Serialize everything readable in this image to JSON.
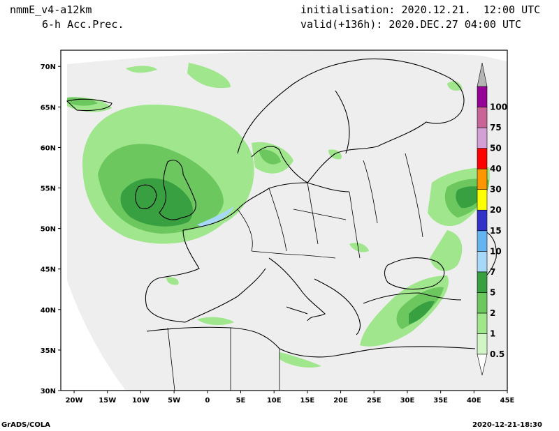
{
  "header": {
    "model": "nmmE_v4-a12km",
    "variable": "6-h Acc.Prec.",
    "init": "initialisation: 2020.12.21.  12:00 UTC",
    "valid": "valid(+136h): 2020.DEC.27 04:00 UTC"
  },
  "axes": {
    "lat_labels": [
      "30N",
      "35N",
      "40N",
      "45N",
      "50N",
      "55N",
      "60N",
      "65N",
      "70N"
    ],
    "lon_labels": [
      "20W",
      "15W",
      "10W",
      "5W",
      "0",
      "5E",
      "10E",
      "15E",
      "20E",
      "25E",
      "30E",
      "35E",
      "40E",
      "45E"
    ],
    "lat_range": [
      30,
      72
    ],
    "lon_range": [
      -22,
      45
    ]
  },
  "legend": {
    "levels": [
      "0.5",
      "1",
      "2",
      "5",
      "7",
      "10",
      "15",
      "20",
      "30",
      "40",
      "50",
      "75",
      "100"
    ],
    "colors": [
      "#d2f5c8",
      "#a0e68c",
      "#6cc85e",
      "#38a040",
      "#a8d8f8",
      "#64b4f0",
      "#3232c8",
      "#ffff00",
      "#ff9600",
      "#ff0000",
      "#d2a0d2",
      "#c86496",
      "#960096"
    ],
    "over_color": "#b4b4b4"
  },
  "footer": {
    "left": "GrADS/COLA",
    "right": "2020-12-21-18:30"
  },
  "colors": {
    "domain_fill": "#eeeeee",
    "coast": "#000000"
  }
}
